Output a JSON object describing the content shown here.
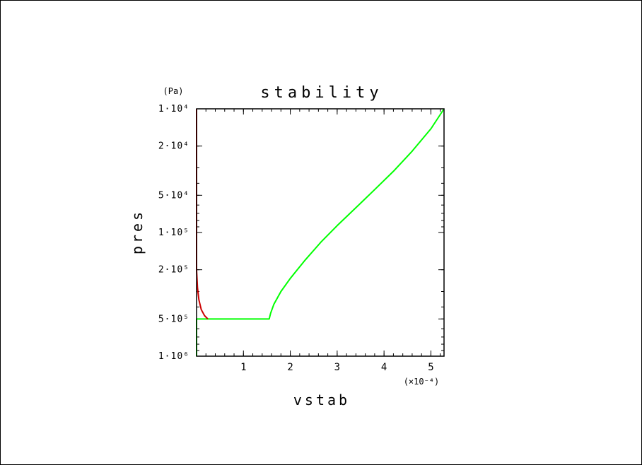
{
  "chart_data": {
    "type": "line",
    "title": "stability",
    "xlabel": "vstab",
    "ylabel": "pres",
    "y_unit": "(Pa)",
    "x_multiplier": "(×10⁻⁴)",
    "x_scale": "linear",
    "y_scale": "log",
    "y_inverted": true,
    "xlim": [
      0,
      5.28
    ],
    "ylim": [
      10000,
      1000000
    ],
    "x_ticks": [
      {
        "value": 1,
        "label": "1"
      },
      {
        "value": 2,
        "label": "2"
      },
      {
        "value": 3,
        "label": "3"
      },
      {
        "value": 4,
        "label": "4"
      },
      {
        "value": 5,
        "label": "5"
      }
    ],
    "y_ticks": [
      {
        "value": 10000,
        "label": "1·10⁴"
      },
      {
        "value": 20000,
        "label": "2·10⁴"
      },
      {
        "value": 50000,
        "label": "5·10⁴"
      },
      {
        "value": 100000,
        "label": "1·10⁵"
      },
      {
        "value": 200000,
        "label": "2·10⁵"
      },
      {
        "value": 500000,
        "label": "5·10⁵"
      },
      {
        "value": 1000000,
        "label": "1·10⁶"
      }
    ],
    "series": [
      {
        "color": "#00ff00",
        "points": [
          {
            "x": 0.0,
            "y": 1000000
          },
          {
            "x": 0.0,
            "y": 500000
          },
          {
            "x": 1.55,
            "y": 500000
          },
          {
            "x": 1.58,
            "y": 450000
          },
          {
            "x": 1.65,
            "y": 380000
          },
          {
            "x": 1.8,
            "y": 300000
          },
          {
            "x": 2.0,
            "y": 235000
          },
          {
            "x": 2.3,
            "y": 170000
          },
          {
            "x": 2.65,
            "y": 120000
          },
          {
            "x": 3.0,
            "y": 88000
          },
          {
            "x": 3.4,
            "y": 63000
          },
          {
            "x": 3.8,
            "y": 45000
          },
          {
            "x": 4.2,
            "y": 32000
          },
          {
            "x": 4.6,
            "y": 22000
          },
          {
            "x": 5.0,
            "y": 14500
          },
          {
            "x": 5.28,
            "y": 10000
          }
        ]
      },
      {
        "color": "#cc0000",
        "points": [
          {
            "x": 0.0,
            "y": 10000
          },
          {
            "x": 0.0,
            "y": 200000
          },
          {
            "x": 0.02,
            "y": 280000
          },
          {
            "x": 0.05,
            "y": 350000
          },
          {
            "x": 0.1,
            "y": 420000
          },
          {
            "x": 0.17,
            "y": 470000
          },
          {
            "x": 0.24,
            "y": 500000
          }
        ]
      }
    ]
  }
}
